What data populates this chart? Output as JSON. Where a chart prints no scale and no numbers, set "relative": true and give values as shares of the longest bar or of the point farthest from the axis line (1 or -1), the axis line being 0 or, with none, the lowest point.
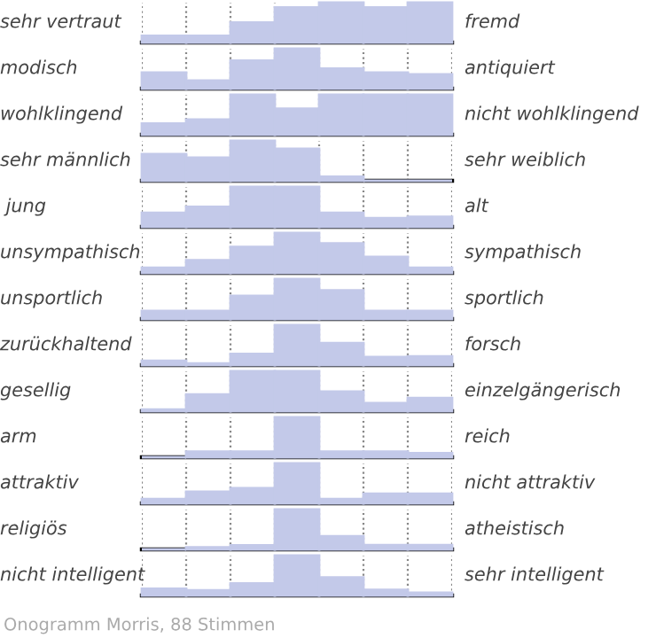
{
  "chart_data": [
    {
      "type": "bar",
      "ylabel": "sehr vertraut",
      "y2label": "fremd",
      "categories": [
        null,
        null,
        null,
        null,
        null,
        null,
        null
      ],
      "values": [
        0.17,
        0.17,
        0.5,
        0.88,
        1,
        0.88,
        1
      ],
      "relative": true,
      "color": "#c3c9e9",
      "grid": "x"
    },
    {
      "type": "bar",
      "ylabel": "modisch",
      "y2label": "antiquiert",
      "categories": [
        null,
        null,
        null,
        null,
        null,
        null,
        null
      ],
      "values": [
        0.4,
        0.2,
        0.7,
        1,
        0.5,
        0.4,
        0.36
      ],
      "relative": true,
      "color": "#c3c9e9",
      "grid": "x"
    },
    {
      "type": "bar",
      "ylabel": "wohlklingend",
      "y2label": "nicht wohlklingend",
      "categories": [
        null,
        null,
        null,
        null,
        null,
        null,
        null
      ],
      "values": [
        0.28,
        0.38,
        1,
        0.65,
        1,
        1,
        1
      ],
      "relative": true,
      "color": "#c3c9e9",
      "grid": "x"
    },
    {
      "type": "bar",
      "ylabel": "sehr männlich",
      "y2label": "sehr weiblich",
      "categories": [
        null,
        null,
        null,
        null,
        null,
        null,
        null
      ],
      "values": [
        0.67,
        0.58,
        1,
        0.8,
        0.1,
        0,
        0
      ],
      "relative": true,
      "color": "#c3c9e9",
      "grid": "x"
    },
    {
      "type": "bar",
      "ylabel": " jung",
      "y2label": "alt",
      "categories": [
        null,
        null,
        null,
        null,
        null,
        null,
        null
      ],
      "values": [
        0.35,
        0.5,
        1,
        1,
        0.35,
        0.22,
        0.25
      ],
      "relative": true,
      "color": "#c3c9e9",
      "grid": "x"
    },
    {
      "type": "bar",
      "ylabel": "unsympathisch",
      "y2label": "sympathisch",
      "categories": [
        null,
        null,
        null,
        null,
        null,
        null,
        null
      ],
      "values": [
        0.13,
        0.32,
        0.65,
        1,
        0.74,
        0.4,
        0.13
      ],
      "relative": true,
      "color": "#c3c9e9",
      "grid": "x"
    },
    {
      "type": "bar",
      "ylabel": "unsportlich",
      "y2label": "sportlich",
      "categories": [
        null,
        null,
        null,
        null,
        null,
        null,
        null
      ],
      "values": [
        0.2,
        0.2,
        0.58,
        1,
        0.72,
        0.2,
        0.2
      ],
      "relative": true,
      "color": "#c3c9e9",
      "grid": "x"
    },
    {
      "type": "bar",
      "ylabel": "zurückhaltend",
      "y2label": "forsch",
      "categories": [
        null,
        null,
        null,
        null,
        null,
        null,
        null
      ],
      "values": [
        0.11,
        0.04,
        0.28,
        1,
        0.55,
        0.2,
        0.22
      ],
      "relative": true,
      "color": "#c3c9e9",
      "grid": "x"
    },
    {
      "type": "bar",
      "ylabel": "gesellig",
      "y2label": "einzelgängerisch",
      "categories": [
        null,
        null,
        null,
        null,
        null,
        null,
        null
      ],
      "values": [
        0.04,
        0.42,
        1,
        1,
        0.49,
        0.2,
        0.33
      ],
      "relative": true,
      "color": "#c3c9e9",
      "grid": "x"
    },
    {
      "type": "bar",
      "ylabel": "arm",
      "y2label": "reich",
      "categories": [
        null,
        null,
        null,
        null,
        null,
        null,
        null
      ],
      "values": [
        0,
        0.14,
        0.14,
        1,
        0.14,
        0.14,
        0.1
      ],
      "relative": true,
      "color": "#c3c9e9",
      "grid": "x"
    },
    {
      "type": "bar",
      "ylabel": "attraktiv",
      "y2label": "nicht attraktiv",
      "categories": [
        null,
        null,
        null,
        null,
        null,
        null,
        null
      ],
      "values": [
        0.11,
        0.29,
        0.38,
        1,
        0.11,
        0.24,
        0.24
      ],
      "relative": true,
      "color": "#c3c9e9",
      "grid": "x"
    },
    {
      "type": "bar",
      "ylabel": "religiös",
      "y2label": "atheistisch",
      "categories": [
        null,
        null,
        null,
        null,
        null,
        null,
        null
      ],
      "values": [
        0,
        0.05,
        0.1,
        1,
        0.33,
        0.11,
        0.11
      ],
      "relative": true,
      "color": "#c3c9e9",
      "grid": "x"
    },
    {
      "type": "bar",
      "ylabel": "nicht intelligent",
      "y2label": "sehr intelligent",
      "categories": [
        null,
        null,
        null,
        null,
        null,
        null,
        null
      ],
      "values": [
        0.17,
        0.13,
        0.3,
        1,
        0.45,
        0.14,
        0.07
      ],
      "relative": true,
      "color": "#c3c9e9",
      "grid": "x",
      "annotations": [
        "Onogramm Morris, 88 Stimmen"
      ]
    }
  ]
}
